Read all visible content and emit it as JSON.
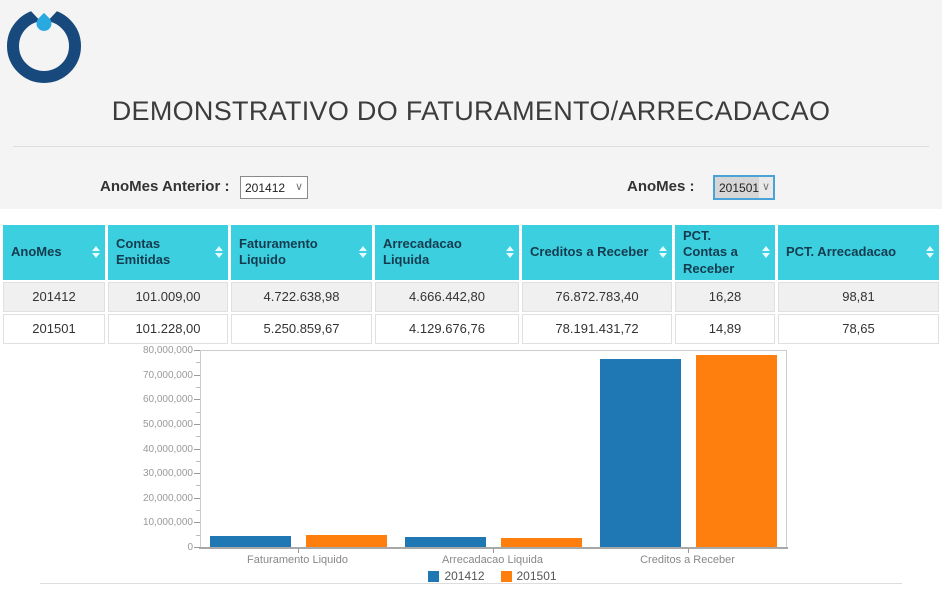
{
  "header": {
    "title": "DEMONSTRATIVO DO FATURAMENTO/ARRECADACAO"
  },
  "logo": {
    "icon": "water-drop-logo",
    "ring_color": "#17497c",
    "drop_color": "#2aa8e0"
  },
  "filters": {
    "anomes_anterior": {
      "label": "AnoMes Anterior :",
      "value": "201412"
    },
    "anomes": {
      "label": "AnoMes :",
      "value": "201501"
    }
  },
  "table": {
    "columns": [
      "AnoMes",
      "Contas Emitidas",
      "Faturamento Liquido",
      "Arrecadacao Liquida",
      "Creditos a Receber",
      "PCT. Contas a Receber",
      "PCT. Arrecadacao"
    ],
    "rows": [
      [
        "201412",
        "101.009,00",
        "4.722.638,98",
        "4.666.442,80",
        "76.872.783,40",
        "16,28",
        "98,81"
      ],
      [
        "201501",
        "101.228,00",
        "5.250.859,67",
        "4.129.676,76",
        "78.191.431,72",
        "14,89",
        "78,65"
      ]
    ]
  },
  "chart_data": {
    "type": "bar",
    "categories": [
      "Faturamento Liquido",
      "Arrecadacao Liquida",
      "Creditos a Receber"
    ],
    "series": [
      {
        "name": "201412",
        "color": "#1f77b4",
        "values": [
          4722638.98,
          4666442.8,
          76872783.4
        ]
      },
      {
        "name": "201501",
        "color": "#ff7f0e",
        "values": [
          5250859.67,
          4129676.76,
          78191431.72
        ]
      }
    ],
    "ylim": [
      0,
      80000000
    ],
    "y_tick_step": 10000000,
    "y_minor_tick_step": 5000000,
    "grid": false,
    "legend_position": "bottom"
  },
  "colors": {
    "top_section_bg": "#f4f4f4",
    "table_header_bg": "#3bcfe0",
    "table_header_text": "#143c4e",
    "row_alt_bg": "#f0f0f0",
    "axis_text": "#999999"
  }
}
